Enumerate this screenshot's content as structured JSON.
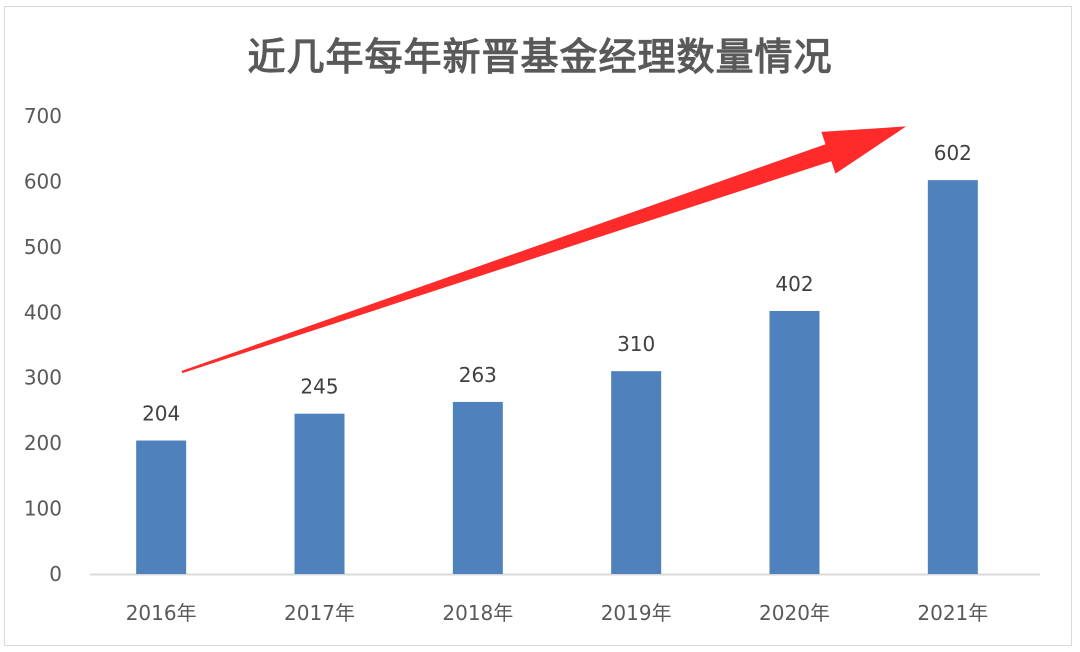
{
  "chart_data": {
    "type": "bar",
    "title": "近几年每年新晋基金经理数量情况",
    "categories": [
      "2016年",
      "2017年",
      "2018年",
      "2019年",
      "2020年",
      "2021年"
    ],
    "values": [
      204,
      245,
      263,
      310,
      402,
      602
    ],
    "data_labels": [
      "204",
      "245",
      "263",
      "310",
      "402",
      "602"
    ],
    "y_ticks": [
      "0",
      "100",
      "200",
      "300",
      "400",
      "500",
      "600",
      "700"
    ],
    "ylim": [
      0,
      700
    ],
    "xlabel": "",
    "ylabel": "",
    "grid": false,
    "legend": "none",
    "bar_color": "#4f81bd",
    "axis_color": "#d9d9d9",
    "annotation": {
      "kind": "trend-arrow",
      "color": "#ff2a2a",
      "direction": "up-right"
    }
  }
}
